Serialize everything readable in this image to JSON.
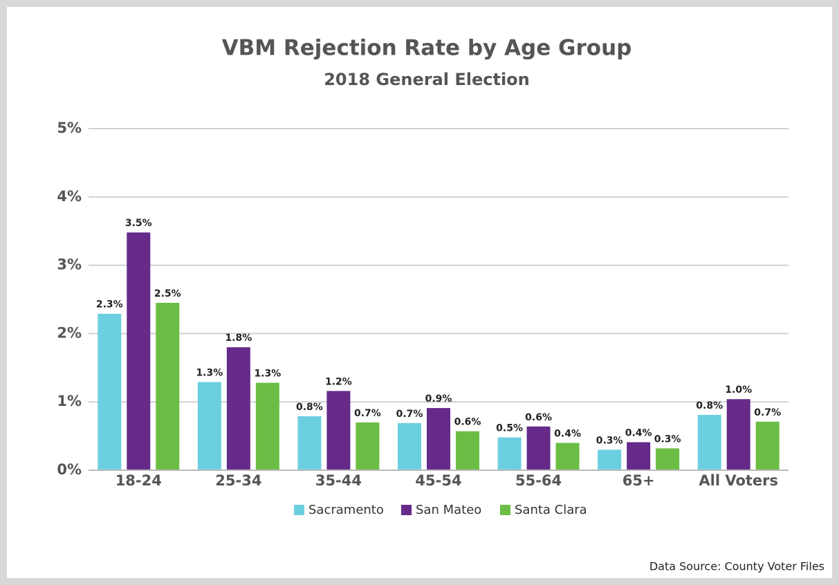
{
  "chart_data": {
    "type": "bar",
    "title": "VBM Rejection Rate by Age Group",
    "subtitle": "2018 General Election",
    "source": "Data Source: County Voter Files",
    "categories": [
      "18-24",
      "25-34",
      "35-44",
      "45-54",
      "55-64",
      "65+",
      "All Voters"
    ],
    "series": [
      {
        "name": "Sacramento",
        "color": "#6ccfe0",
        "values": [
          2.29,
          1.29,
          0.79,
          0.69,
          0.48,
          0.3,
          0.81
        ],
        "value_labels": [
          "2.3%",
          "1.3%",
          "0.8%",
          "0.7%",
          "0.5%",
          "0.3%",
          "0.8%"
        ]
      },
      {
        "name": "San Mateo",
        "color": "#652a8a",
        "values": [
          3.48,
          1.8,
          1.16,
          0.91,
          0.64,
          0.41,
          1.04
        ],
        "value_labels": [
          "3.5%",
          "1.8%",
          "1.2%",
          "0.9%",
          "0.6%",
          "0.4%",
          "1.0%"
        ]
      },
      {
        "name": "Santa Clara",
        "color": "#6cbd45",
        "values": [
          2.45,
          1.28,
          0.7,
          0.57,
          0.4,
          0.32,
          0.71
        ],
        "value_labels": [
          "2.5%",
          "1.3%",
          "0.7%",
          "0.6%",
          "0.4%",
          "0.3%",
          "0.7%"
        ]
      }
    ],
    "ylim": [
      0,
      5
    ],
    "yticks": [
      {
        "value": 0,
        "label": "0%"
      },
      {
        "value": 1,
        "label": "1%"
      },
      {
        "value": 2,
        "label": "2%"
      },
      {
        "value": 3,
        "label": "3%"
      },
      {
        "value": 4,
        "label": "4%"
      },
      {
        "value": 5,
        "label": "5%"
      }
    ],
    "grid": true
  }
}
